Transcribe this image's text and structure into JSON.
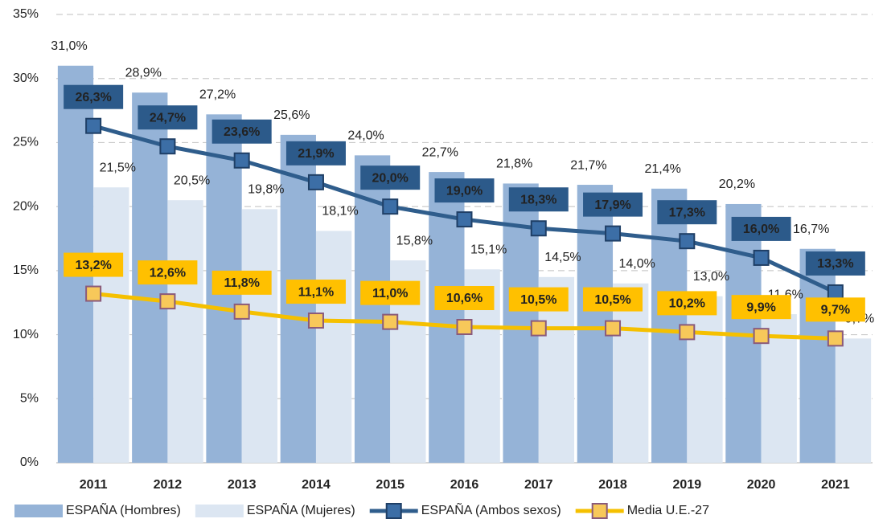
{
  "chart_data": {
    "type": "bar",
    "categories": [
      "2011",
      "2012",
      "2013",
      "2014",
      "2015",
      "2016",
      "2017",
      "2018",
      "2019",
      "2020",
      "2021"
    ],
    "series": [
      {
        "name": "ESPAÑA (Hombres)",
        "type": "bar",
        "color": "#95b3d7",
        "values": [
          31.0,
          28.9,
          27.2,
          25.6,
          24.0,
          22.7,
          21.8,
          21.7,
          21.4,
          20.2,
          16.7
        ],
        "value_labels": [
          "31,0%",
          "28,9%",
          "27,2%",
          "25,6%",
          "24,0%",
          "22,7%",
          "21,8%",
          "21,7%",
          "21,4%",
          "20,2%",
          "16,7%"
        ]
      },
      {
        "name": "ESPAÑA (Mujeres)",
        "type": "bar",
        "color": "#dce6f2",
        "values": [
          21.5,
          20.5,
          19.8,
          18.1,
          15.8,
          15.1,
          14.5,
          14.0,
          13.0,
          11.6,
          9.7
        ],
        "value_labels": [
          "21,5%",
          "20,5%",
          "19,8%",
          "18,1%",
          "15,8%",
          "15,1%",
          "14,5%",
          "14,0%",
          "13,0%",
          "11,6%",
          "9,7%"
        ]
      },
      {
        "name": "ESPAÑA (Ambos sexos)",
        "type": "line",
        "color": "#2f5d8c",
        "values": [
          26.3,
          24.7,
          23.6,
          21.9,
          20.0,
          19.0,
          18.3,
          17.9,
          17.3,
          16.0,
          13.3
        ],
        "value_labels": [
          "26,3%",
          "24,7%",
          "23,6%",
          "21,9%",
          "20,0%",
          "19,0%",
          "18,3%",
          "17,9%",
          "17,3%",
          "16,0%",
          "13,3%"
        ]
      },
      {
        "name": "Media U.E.-27",
        "type": "line",
        "color": "#f5c000",
        "values": [
          13.2,
          12.6,
          11.8,
          11.1,
          11.0,
          10.6,
          10.5,
          10.5,
          10.2,
          9.9,
          9.7
        ],
        "value_labels": [
          "13,2%",
          "12,6%",
          "11,8%",
          "11,1%",
          "11,0%",
          "10,6%",
          "10,5%",
          "10,5%",
          "10,2%",
          "9,9%",
          "9,7%"
        ]
      }
    ],
    "ylim": [
      0,
      35
    ],
    "yticks": [
      {
        "value": 0,
        "label": "0%"
      },
      {
        "value": 5,
        "label": "5%"
      },
      {
        "value": 10,
        "label": "10%"
      },
      {
        "value": 15,
        "label": "15%"
      },
      {
        "value": 20,
        "label": "20%"
      },
      {
        "value": 25,
        "label": "25%"
      },
      {
        "value": 30,
        "label": "30%"
      },
      {
        "value": 35,
        "label": "35%"
      }
    ],
    "grid": true,
    "legend": "bottom"
  }
}
